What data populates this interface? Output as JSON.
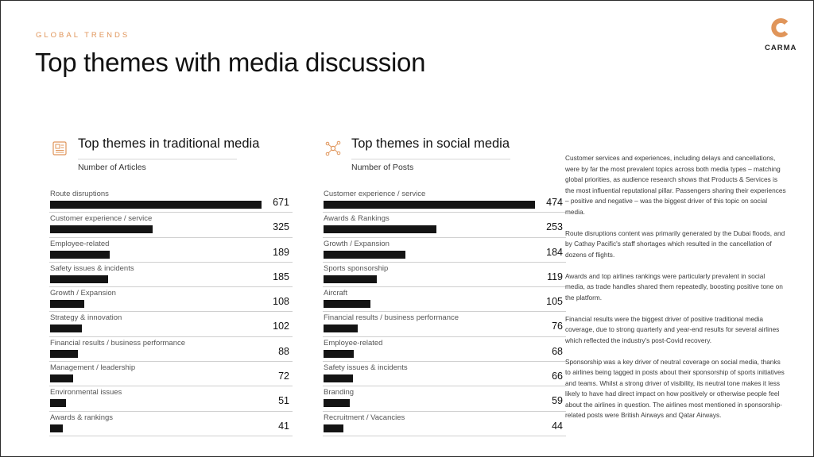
{
  "header": {
    "eyebrow": "GLOBAL TRENDS",
    "title": "Top themes with media discussion",
    "logo_text": "CARMA",
    "accent_color": "#e0955a"
  },
  "chart_data": [
    {
      "type": "bar",
      "title": "Top themes in traditional media",
      "subtitle": "Number of Articles",
      "icon": "newspaper-icon",
      "categories": [
        "Route disruptions",
        "Customer experience / service",
        "Employee-related",
        "Safety issues & incidents",
        "Growth / Expansion",
        "Strategy & innovation",
        "Financial results / business performance",
        "Management / leadership",
        "Environmental issues",
        "Awards & rankings"
      ],
      "values": [
        671,
        325,
        189,
        185,
        108,
        102,
        88,
        72,
        51,
        41
      ],
      "xlim": [
        0,
        671
      ],
      "bar_color": "#141414"
    },
    {
      "type": "bar",
      "title": "Top themes in social media",
      "subtitle": "Number of Posts",
      "icon": "network-icon",
      "categories": [
        "Customer experience / service",
        "Awards & Rankings",
        "Growth / Expansion",
        "Sports sponsorship",
        "Aircraft",
        "Financial results / business performance",
        "Employee-related",
        "Safety issues & incidents",
        "Branding",
        "Recruitment / Vacancies"
      ],
      "values": [
        474,
        253,
        184,
        119,
        105,
        76,
        68,
        66,
        59,
        44
      ],
      "xlim": [
        0,
        474
      ],
      "bar_color": "#141414"
    }
  ],
  "commentary": [
    "Customer services and experiences, including delays and cancellations, were by far the most prevalent topics across both media types – matching global priorities, as audience research shows that Products & Services is the most influential reputational pillar. Passengers sharing their experiences – positive and negative – was the biggest driver of this topic on social media.",
    "Route disruptions content was primarily generated by the Dubai floods, and by Cathay Pacific's staff shortages which resulted in the cancellation of dozens of flights.",
    "Awards and top airlines rankings were particularly prevalent in social media, as trade handles shared them repeatedly, boosting positive tone on the platform.",
    "Financial results were the biggest driver of positive traditional media coverage, due to strong quarterly and year-end results for several airlines which reflected the industry's post-Covid recovery.",
    "Sponsorship was a key driver of neutral coverage on social media, thanks to airlines being tagged in posts about their sponsorship of sports initiatives and teams. Whilst a strong driver of visibility, its neutral tone makes it less likely to have had direct impact on how positively or otherwise people feel about the airlines in question. The airlines most mentioned in sponsorship-related posts were British Airways and Qatar Airways."
  ]
}
